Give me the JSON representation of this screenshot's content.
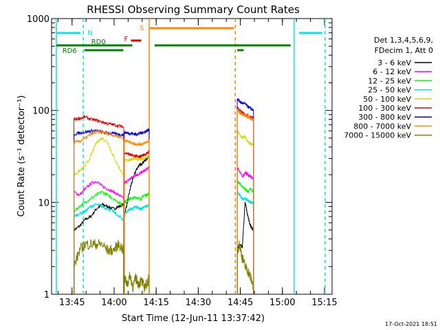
{
  "footer": {
    "generated": "17-Oct-2021 18:51"
  },
  "chart_data": {
    "type": "line",
    "title": "RHESSI Observing Summary Count Rates",
    "xlabel": "Start Time (12-Jun-11 13:37:42)",
    "ylabel": "Count Rate (s⁻¹ detector⁻¹)",
    "yscale": "log",
    "ylim": [
      1,
      1000
    ],
    "xlim_minutes_after_13_37_42": [
      0,
      100
    ],
    "y_ticks": [
      "1",
      "10",
      "100",
      "1000"
    ],
    "x_ticks": [
      {
        "label": "13:45",
        "t": 7.3
      },
      {
        "label": "14:00",
        "t": 22.3
      },
      {
        "label": "14:15",
        "t": 37.3
      },
      {
        "label": "14:30",
        "t": 52.3
      },
      {
        "label": "14:45",
        "t": 67.3
      },
      {
        "label": "15:00",
        "t": 82.3
      },
      {
        "label": "15:15",
        "t": 97.3
      }
    ],
    "legend": {
      "placement": "right",
      "header": [
        "Det 1,3,4,5,6,9,",
        "FDecim 1, Att 0"
      ],
      "entries": [
        {
          "label": "3 - 6 keV",
          "color": "#000000"
        },
        {
          "label": "6 - 12 keV",
          "color": "#ff00ff"
        },
        {
          "label": "12 - 25 keV",
          "color": "#00ff00"
        },
        {
          "label": "25 - 50 keV",
          "color": "#00e0e0"
        },
        {
          "label": "50 - 100 keV",
          "color": "#d8d800"
        },
        {
          "label": "100 - 300 keV",
          "color": "#e00000"
        },
        {
          "label": "300 - 800 keV",
          "color": "#0000dd"
        },
        {
          "label": "800 - 7000 keV",
          "color": "#ff8800"
        },
        {
          "label": "7000 - 15000 keV",
          "color": "#808000"
        }
      ]
    },
    "markers": {
      "night_color": "#00e5ee",
      "saa_color": "#ff8800",
      "n_label": "N",
      "s_label": "S",
      "f_label": "F",
      "rd0_label": "RD0",
      "rd6_label": "RD6",
      "night_intervals": [
        [
          0,
          11.3
        ],
        [
          86.5,
          97.5
        ]
      ],
      "saa_intervals": [
        [
          34.8,
          65.5
        ]
      ],
      "flare_intervals": [
        [
          28.3,
          32.0
        ]
      ],
      "rd0_intervals": [
        [
          0,
          28.8
        ],
        [
          35,
          85.2
        ]
      ],
      "rd6_intervals": [
        [
          11.7,
          25.6
        ],
        [
          66.2,
          68.5
        ]
      ]
    },
    "series": [
      {
        "name": "3 - 6 keV",
        "color": "#000000",
        "segments": [
          {
            "x": [
              8.0,
              10,
              12,
              14,
              16,
              18,
              20,
              22,
              24,
              25.7
            ],
            "y": [
              5,
              5.5,
              6.5,
              7,
              8.5,
              9.5,
              9,
              8.5,
              9,
              9.5
            ]
          },
          {
            "x": [
              25.9,
              27,
              28,
              29,
              30,
              31,
              32,
              33,
              34,
              34.8
            ],
            "y": [
              7,
              10,
              14,
              18,
              22,
              25,
              26,
              28,
              30,
              33
            ]
          },
          {
            "x": [
              66.2,
              67,
              68,
              69,
              70,
              71,
              72
            ],
            "y": [
              3,
              3.5,
              3.2,
              10,
              7,
              5.5,
              5
            ]
          }
        ]
      },
      {
        "name": "6 - 12 keV",
        "color": "#ff00ff",
        "segments": [
          {
            "x": [
              8.0,
              10,
              12,
              14,
              16,
              18,
              20,
              22,
              24,
              25.7
            ],
            "y": [
              13,
              12,
              14,
              16,
              17,
              15,
              14,
              13,
              12,
              11
            ]
          },
          {
            "x": [
              25.9,
              27,
              28,
              29,
              30,
              31,
              32,
              33,
              34,
              34.8
            ],
            "y": [
              16,
              17,
              18,
              19,
              20,
              20,
              21,
              22,
              23,
              24
            ]
          },
          {
            "x": [
              66.2,
              67,
              68,
              69,
              70,
              71,
              72
            ],
            "y": [
              24,
              22,
              19,
              21,
              20,
              19,
              18
            ]
          }
        ]
      },
      {
        "name": "12 - 25 keV",
        "color": "#00ff00",
        "segments": [
          {
            "x": [
              8.0,
              10,
              12,
              14,
              16,
              18,
              20,
              22,
              24,
              25.7
            ],
            "y": [
              8,
              9,
              10,
              11,
              12,
              13,
              12,
              11,
              10,
              9
            ]
          },
          {
            "x": [
              25.9,
              27,
              28,
              29,
              30,
              31,
              32,
              33,
              34,
              34.8
            ],
            "y": [
              10,
              10.5,
              11,
              11,
              11.5,
              11,
              11,
              12,
              12,
              12.5
            ]
          },
          {
            "x": [
              66.2,
              67,
              68,
              69,
              70,
              71,
              72
            ],
            "y": [
              17,
              16,
              15,
              14,
              13,
              14,
              13
            ]
          }
        ]
      },
      {
        "name": "25 - 50 keV",
        "color": "#00e0e0",
        "segments": [
          {
            "x": [
              8.0,
              10,
              12,
              14,
              16,
              18,
              20,
              22,
              24,
              25.7
            ],
            "y": [
              7,
              7.5,
              8,
              9,
              9.5,
              9,
              8.5,
              8,
              7,
              6.5
            ]
          },
          {
            "x": [
              25.9,
              27,
              28,
              29,
              30,
              31,
              32,
              33,
              34,
              34.8
            ],
            "y": [
              7.5,
              8,
              8.5,
              8.5,
              9,
              8.5,
              8.5,
              9,
              9,
              9.5
            ]
          },
          {
            "x": [
              66.2,
              67,
              68,
              69,
              70,
              71,
              72
            ],
            "y": [
              13,
              12,
              11,
              11,
              10.5,
              10,
              10
            ]
          }
        ]
      },
      {
        "name": "50 - 100 keV",
        "color": "#d8d800",
        "segments": [
          {
            "x": [
              8.0,
              10,
              12,
              14,
              16,
              18,
              20,
              22,
              24,
              25.7
            ],
            "y": [
              20,
              22,
              25,
              32,
              45,
              50,
              45,
              32,
              24,
              20
            ]
          },
          {
            "x": [
              25.9,
              27,
              28,
              29,
              30,
              31,
              32,
              33,
              34,
              34.8
            ],
            "y": [
              28,
              29,
              29,
              30,
              30,
              29,
              30,
              30,
              31,
              32
            ]
          },
          {
            "x": [
              66.2,
              67,
              68,
              69,
              70,
              71,
              72
            ],
            "y": [
              60,
              55,
              50,
              52,
              45,
              43,
              42
            ]
          }
        ]
      },
      {
        "name": "100 - 300 keV",
        "color": "#e00000",
        "segments": [
          {
            "x": [
              8.0,
              10,
              12,
              14,
              16,
              18,
              20,
              22,
              24,
              25.7
            ],
            "y": [
              80,
              82,
              85,
              80,
              78,
              75,
              72,
              70,
              68,
              66
            ]
          },
          {
            "x": [
              25.9,
              27,
              28,
              29,
              30,
              31,
              32,
              33,
              34,
              34.8
            ],
            "y": [
              35,
              34,
              33,
              32,
              32,
              31,
              32,
              33,
              34,
              36
            ]
          },
          {
            "x": [
              66.2,
              67,
              68,
              69,
              70,
              71,
              72
            ],
            "y": [
              110,
              100,
              95,
              90,
              88,
              85,
              82
            ]
          }
        ]
      },
      {
        "name": "300 - 800 keV",
        "color": "#0000dd",
        "segments": [
          {
            "x": [
              8.0,
              10,
              12,
              14,
              16,
              18,
              20,
              22,
              24,
              25.7
            ],
            "y": [
              55,
              57,
              58,
              60,
              60,
              58,
              57,
              56,
              55,
              54
            ]
          },
          {
            "x": [
              25.9,
              27,
              28,
              29,
              30,
              31,
              32,
              33,
              34,
              34.8
            ],
            "y": [
              58,
              57,
              56,
              56,
              55,
              56,
              57,
              58,
              60,
              62
            ]
          },
          {
            "x": [
              66.2,
              67,
              68,
              69,
              70,
              71,
              72
            ],
            "y": [
              135,
              125,
              120,
              118,
              110,
              105,
              100
            ]
          }
        ]
      },
      {
        "name": "800 - 7000 keV",
        "color": "#ff8800",
        "segments": [
          {
            "x": [
              8.0,
              10,
              12,
              14,
              16,
              18,
              20,
              22,
              24,
              25.7
            ],
            "y": [
              45,
              46,
              50,
              55,
              58,
              58,
              56,
              54,
              52,
              50
            ]
          },
          {
            "x": [
              25.9,
              27,
              28,
              29,
              30,
              31,
              32,
              33,
              34,
              34.8
            ],
            "y": [
              48,
              46,
              45,
              44,
              43,
              43,
              43,
              44,
              45,
              48
            ]
          },
          {
            "x": [
              66.2,
              67,
              68,
              69,
              70,
              71,
              72
            ],
            "y": [
              100,
              95,
              90,
              88,
              85,
              82,
              80
            ]
          }
        ]
      },
      {
        "name": "7000 - 15000 keV",
        "color": "#808000",
        "segments": [
          {
            "x": [
              8.0,
              10,
              12,
              14,
              16,
              18,
              20,
              22,
              24,
              25.7
            ],
            "y": [
              2,
              3,
              3.5,
              3.5,
              3.5,
              3.5,
              3,
              3,
              3.5,
              3
            ]
          },
          {
            "x": [
              25.9,
              27,
              28,
              29,
              30,
              31,
              32,
              33,
              34,
              34.8
            ],
            "y": [
              1.5,
              1.3,
              1.6,
              1.2,
              1.5,
              1.3,
              1.4,
              1.2,
              1.3,
              1.5
            ]
          },
          {
            "x": [
              66.2,
              67,
              68,
              69,
              70,
              71,
              72
            ],
            "y": [
              3,
              3.5,
              2.5,
              2,
              1.8,
              1.5,
              1.2
            ]
          }
        ]
      }
    ]
  }
}
